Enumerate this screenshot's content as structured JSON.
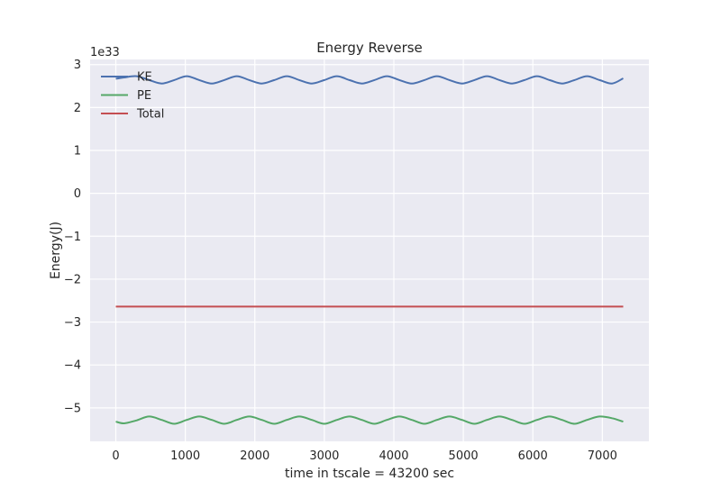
{
  "chart_data": {
    "type": "line",
    "title": "Energy Reverse",
    "xlabel": "time in tscale = 43200 sec",
    "ylabel": "Energy(J)",
    "y_offset_label": "1e33",
    "xlim": [
      -370,
      7670
    ],
    "ylim": [
      -5.78,
      3.12
    ],
    "x_ticks": [
      0,
      1000,
      2000,
      3000,
      4000,
      5000,
      6000,
      7000
    ],
    "x_tick_labels": [
      "0",
      "1000",
      "2000",
      "3000",
      "4000",
      "5000",
      "6000",
      "7000"
    ],
    "y_ticks": [
      3,
      2,
      1,
      0,
      -1,
      -2,
      -3,
      -4,
      -5
    ],
    "y_tick_labels": [
      "3",
      "2",
      "1",
      "0",
      "−1",
      "−2",
      "−3",
      "−4",
      "−5"
    ],
    "grid": true,
    "legend_position": "top-left",
    "series": [
      {
        "name": "KE",
        "color": "#4c72b0",
        "x": [
          0,
          120,
          300,
          480,
          660,
          840,
          1020,
          1200,
          1380,
          1560,
          1740,
          1920,
          2100,
          2280,
          2460,
          2640,
          2820,
          3000,
          3180,
          3360,
          3540,
          3720,
          3900,
          4080,
          4260,
          4440,
          4620,
          4800,
          4980,
          5160,
          5340,
          5520,
          5700,
          5880,
          6060,
          6240,
          6420,
          6600,
          6780,
          6960,
          7140,
          7300
        ],
        "y": [
          2.67,
          2.7,
          2.73,
          2.64,
          2.56,
          2.64,
          2.73,
          2.64,
          2.56,
          2.64,
          2.73,
          2.64,
          2.56,
          2.64,
          2.73,
          2.64,
          2.56,
          2.64,
          2.73,
          2.64,
          2.56,
          2.64,
          2.73,
          2.64,
          2.56,
          2.64,
          2.73,
          2.64,
          2.56,
          2.64,
          2.73,
          2.64,
          2.56,
          2.64,
          2.73,
          2.64,
          2.56,
          2.64,
          2.73,
          2.64,
          2.56,
          2.68
        ]
      },
      {
        "name": "PE",
        "color": "#55a868",
        "x": [
          0,
          120,
          300,
          480,
          660,
          840,
          1020,
          1200,
          1380,
          1560,
          1740,
          1920,
          2100,
          2280,
          2460,
          2640,
          2820,
          3000,
          3180,
          3360,
          3540,
          3720,
          3900,
          4080,
          4260,
          4440,
          4620,
          4800,
          4980,
          5160,
          5340,
          5520,
          5700,
          5880,
          6060,
          6240,
          6420,
          6600,
          6780,
          6960,
          7140,
          7300
        ],
        "y": [
          -5.32,
          -5.36,
          -5.29,
          -5.2,
          -5.28,
          -5.37,
          -5.28,
          -5.2,
          -5.28,
          -5.37,
          -5.28,
          -5.2,
          -5.28,
          -5.37,
          -5.28,
          -5.2,
          -5.28,
          -5.37,
          -5.28,
          -5.2,
          -5.28,
          -5.37,
          -5.28,
          -5.2,
          -5.28,
          -5.37,
          -5.28,
          -5.2,
          -5.28,
          -5.37,
          -5.28,
          -5.2,
          -5.28,
          -5.37,
          -5.28,
          -5.2,
          -5.28,
          -5.37,
          -5.28,
          -5.2,
          -5.24,
          -5.32
        ]
      },
      {
        "name": "Total",
        "color": "#c44e52",
        "x": [
          0,
          7300
        ],
        "y": [
          -2.64,
          -2.64
        ]
      }
    ]
  }
}
